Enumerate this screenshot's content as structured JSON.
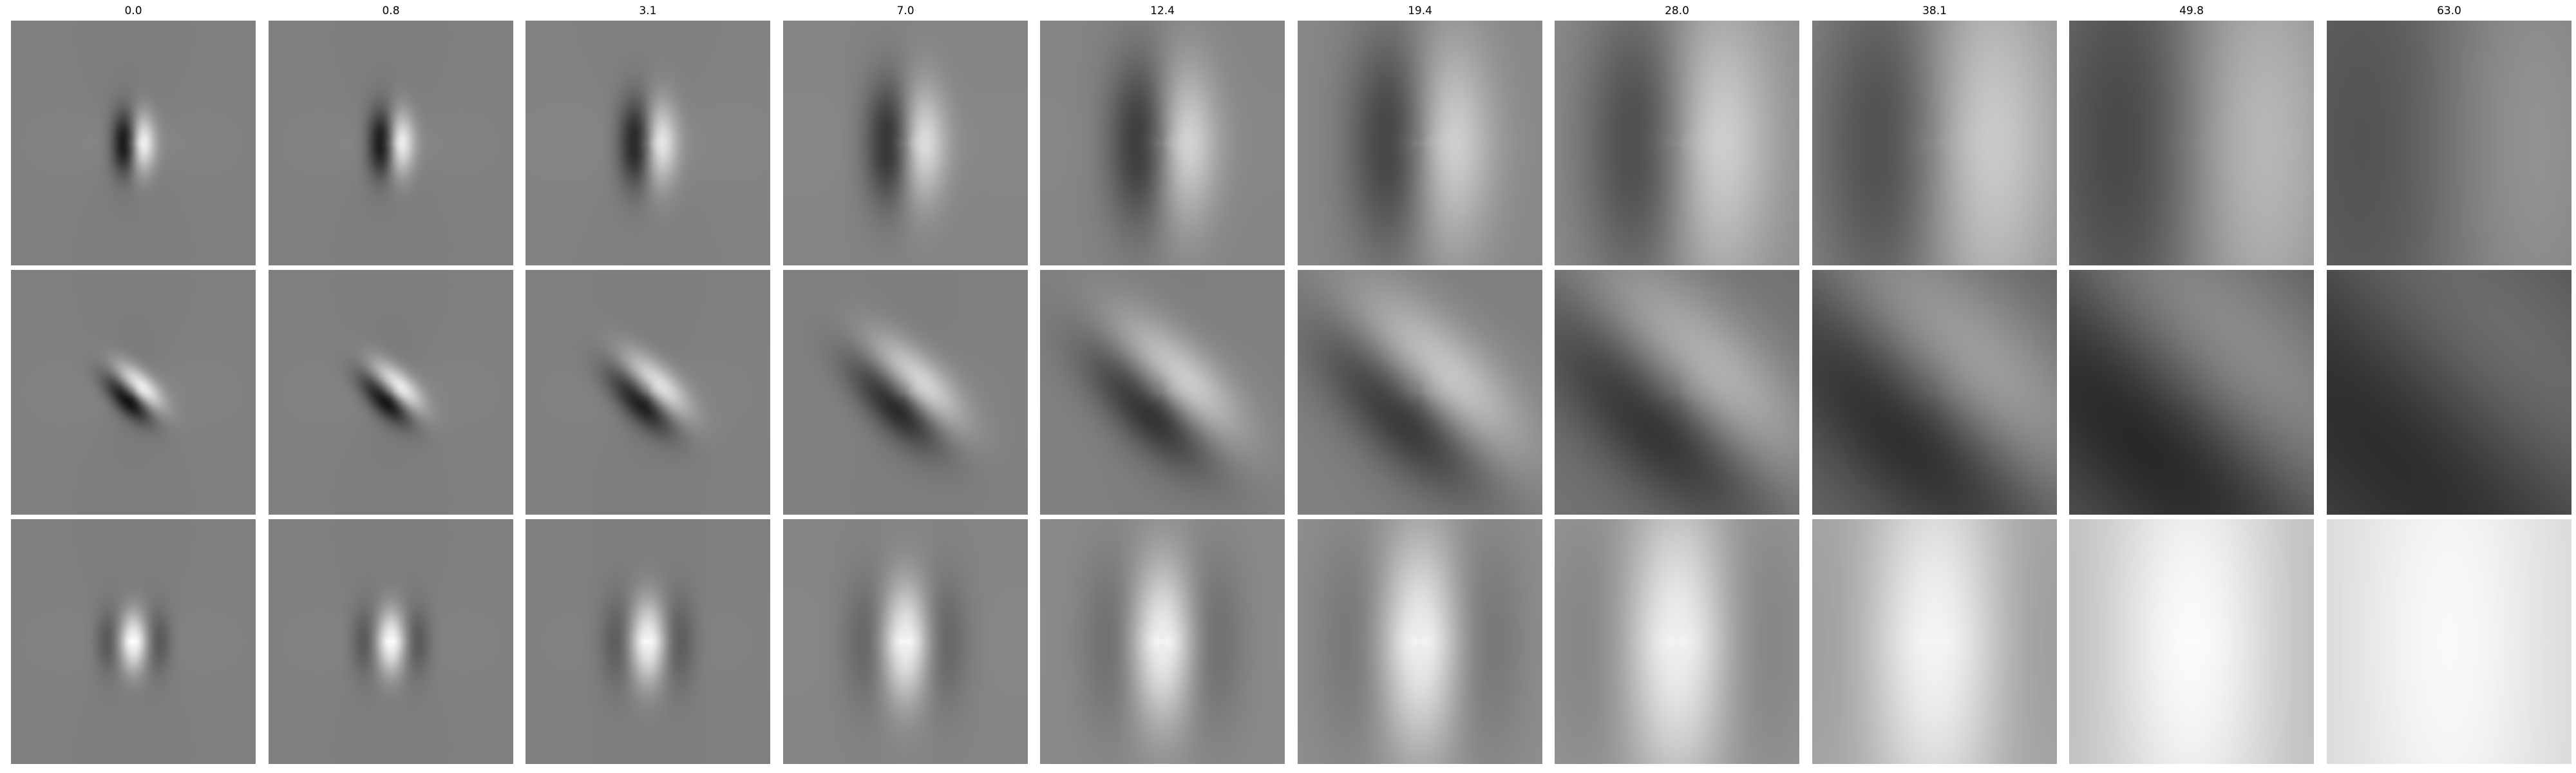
{
  "column_titles": [
    "0.0",
    "0.8",
    "3.1",
    "7.0",
    "12.4",
    "19.4",
    "28.0",
    "38.1",
    "49.8",
    "63.0"
  ],
  "rows": [
    {
      "polarity": -1,
      "orientation": "vertical",
      "panels": [
        {
          "blur": 0.0,
          "contrast": 1.0,
          "mean": 0.5
        },
        {
          "blur": 0.01,
          "contrast": 1.0,
          "mean": 0.5
        },
        {
          "blur": 0.05,
          "contrast": 1.0,
          "mean": 0.51
        },
        {
          "blur": 0.12,
          "contrast": 1.0,
          "mean": 0.52
        },
        {
          "blur": 0.21,
          "contrast": 1.0,
          "mean": 0.52
        },
        {
          "blur": 0.32,
          "contrast": 1.0,
          "mean": 0.53
        },
        {
          "blur": 0.46,
          "contrast": 1.0,
          "mean": 0.55
        },
        {
          "blur": 0.63,
          "contrast": 1.0,
          "mean": 0.55
        },
        {
          "blur": 0.82,
          "contrast": 0.95,
          "mean": 0.5
        },
        {
          "blur": 1.0,
          "contrast": 0.55,
          "mean": 0.45
        }
      ]
    },
    {
      "polarity": -1,
      "orientation": "diagonal",
      "panels": [
        {
          "blur": 0.0,
          "contrast": 1.0,
          "mean": 0.5
        },
        {
          "blur": 0.01,
          "contrast": 1.0,
          "mean": 0.5
        },
        {
          "blur": 0.05,
          "contrast": 1.0,
          "mean": 0.5
        },
        {
          "blur": 0.12,
          "contrast": 1.0,
          "mean": 0.5
        },
        {
          "blur": 0.21,
          "contrast": 1.0,
          "mean": 0.5
        },
        {
          "blur": 0.32,
          "contrast": 1.0,
          "mean": 0.5
        },
        {
          "blur": 0.46,
          "contrast": 0.95,
          "mean": 0.45
        },
        {
          "blur": 0.63,
          "contrast": 0.9,
          "mean": 0.4
        },
        {
          "blur": 0.82,
          "contrast": 0.85,
          "mean": 0.35
        },
        {
          "blur": 1.0,
          "contrast": 0.55,
          "mean": 0.3
        }
      ]
    },
    {
      "polarity": 1,
      "orientation": "vertical",
      "panels": [
        {
          "blur": 0.0,
          "contrast": 1.0,
          "mean": 0.5
        },
        {
          "blur": 0.01,
          "contrast": 1.0,
          "mean": 0.5
        },
        {
          "blur": 0.05,
          "contrast": 1.0,
          "mean": 0.5
        },
        {
          "blur": 0.12,
          "contrast": 1.0,
          "mean": 0.52
        },
        {
          "blur": 0.21,
          "contrast": 1.0,
          "mean": 0.54
        },
        {
          "blur": 0.32,
          "contrast": 1.0,
          "mean": 0.56
        },
        {
          "blur": 0.46,
          "contrast": 0.95,
          "mean": 0.6
        },
        {
          "blur": 0.63,
          "contrast": 0.8,
          "mean": 0.68
        },
        {
          "blur": 0.82,
          "contrast": 0.6,
          "mean": 0.78
        },
        {
          "blur": 1.0,
          "contrast": 0.35,
          "mean": 0.86
        }
      ]
    }
  ]
}
